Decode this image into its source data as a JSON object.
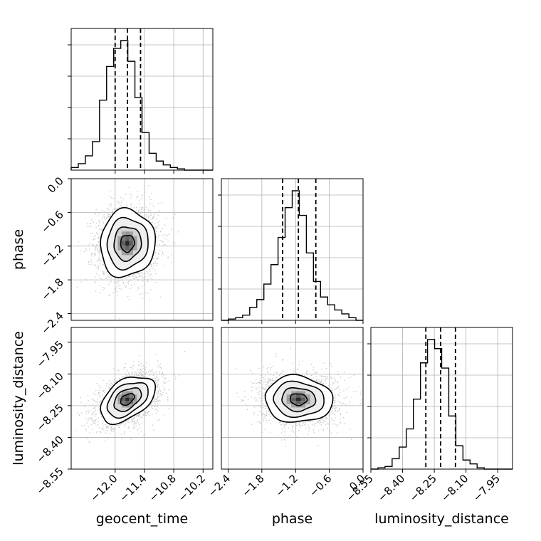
{
  "chart_data": {
    "type": "corner",
    "parameters": [
      "geocent_time",
      "phase",
      "luminosity_distance"
    ],
    "axis_labels": [
      "geocent_time",
      "phase",
      "luminosity_distance"
    ],
    "ranges": [
      [
        -12.9,
        -10.0
      ],
      [
        -2.52,
        0.0
      ],
      [
        -8.55,
        -7.88
      ]
    ],
    "ticks": [
      [
        -12.0,
        -11.4,
        -10.8,
        -10.2
      ],
      [
        -2.4,
        -1.8,
        -1.2,
        -0.6,
        0.0
      ],
      [
        -8.55,
        -8.4,
        -8.25,
        -8.1,
        -7.95
      ]
    ],
    "tick_labels": [
      [
        "−12.0",
        "−11.4",
        "−10.8",
        "−10.2"
      ],
      [
        "−2.4",
        "−1.8",
        "−1.2",
        "−0.6",
        "0.0"
      ],
      [
        "−8.55",
        "−8.40",
        "−8.25",
        "−8.10",
        "−7.95"
      ]
    ],
    "quantiles": [
      [
        -12.0,
        -11.75,
        -11.48
      ],
      [
        -1.43,
        -1.15,
        -0.84
      ],
      [
        -8.29,
        -8.22,
        -8.15
      ]
    ],
    "histograms": [
      {
        "counts": [
          0.02,
          0.05,
          0.11,
          0.22,
          0.54,
          0.8,
          0.94,
          1.0,
          0.84,
          0.56,
          0.29,
          0.13,
          0.07,
          0.04,
          0.02,
          0.01,
          0.0,
          0.0,
          0.0,
          0.0
        ]
      },
      {
        "counts": [
          0.0,
          0.01,
          0.02,
          0.04,
          0.1,
          0.16,
          0.28,
          0.43,
          0.64,
          0.87,
          1.0,
          0.81,
          0.52,
          0.3,
          0.18,
          0.12,
          0.08,
          0.05,
          0.02,
          0.0
        ]
      },
      {
        "counts": [
          0.0,
          0.01,
          0.02,
          0.08,
          0.17,
          0.31,
          0.54,
          0.82,
          1.0,
          0.93,
          0.78,
          0.41,
          0.18,
          0.07,
          0.04,
          0.01,
          0.0,
          0.0,
          0.0,
          0.0
        ]
      }
    ],
    "joint_distributions": [
      {
        "x": 0,
        "y": 1,
        "mean": [
          -11.75,
          -1.15
        ],
        "sd": [
          0.28,
          0.3
        ],
        "corr": 0.05
      },
      {
        "x": 0,
        "y": 2,
        "mean": [
          -11.75,
          -8.22
        ],
        "sd": [
          0.28,
          0.055
        ],
        "corr": 0.45
      },
      {
        "x": 1,
        "y": 2,
        "mean": [
          -1.15,
          -8.22
        ],
        "sd": [
          0.3,
          0.055
        ],
        "corr": -0.05
      }
    ],
    "contour_levels": [
      "0.5 sigma",
      "1 sigma",
      "1.5 sigma",
      "2 sigma"
    ],
    "colors": {
      "hist_line": "#000000",
      "quantile_line": "#000000",
      "points": "#bdbdbd",
      "grid": "#b0b0b0"
    },
    "grid": true,
    "legend": "none"
  }
}
